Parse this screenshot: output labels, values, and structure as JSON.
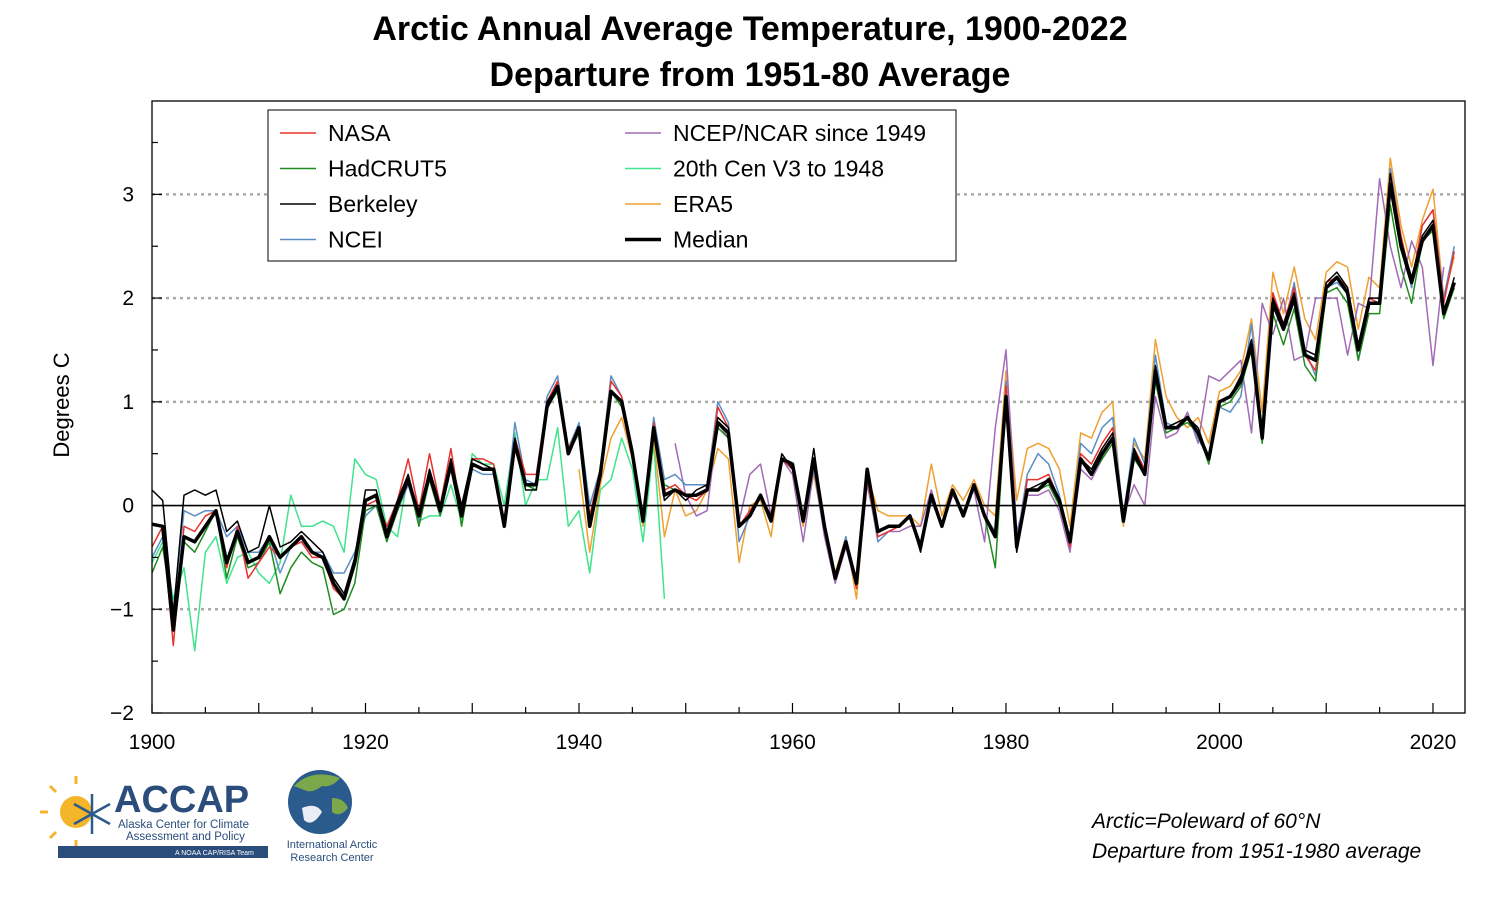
{
  "title_line1": "Arctic Annual Average Temperature, 1900-2022",
  "title_line2": "Departure from 1951-80 Average",
  "notes": {
    "line1": "Arctic=Poleward of 60°N",
    "line2": "Departure from 1951-1980 average"
  },
  "logos": {
    "accap": {
      "name": "ACCAP",
      "sub1": "Alaska Center for Climate",
      "sub2": "Assessment and Policy",
      "tag": "A NOAA CAP/RISA Team"
    },
    "iarc": {
      "line1": "International Arctic",
      "line2": "Research Center"
    }
  },
  "chart_data": {
    "type": "line",
    "ylabel": "Degrees C",
    "xlim": [
      1900,
      2023
    ],
    "ylim": [
      -2,
      3.9
    ],
    "x_ticks": [
      1900,
      1920,
      1940,
      1960,
      1980,
      2000,
      2020
    ],
    "y_ticks": [
      -2,
      -1,
      0,
      1,
      2,
      3
    ],
    "y_tick_labels": [
      "−2",
      "−1",
      "0",
      "1",
      "2",
      "3"
    ],
    "gridlines_y": [
      -1,
      1,
      2,
      3
    ],
    "zero_line": true,
    "legend_position": "top-left",
    "median_start_year": 1900,
    "median": [
      -0.18,
      -0.2,
      -1.2,
      -0.3,
      -0.35,
      -0.2,
      -0.05,
      -0.55,
      -0.25,
      -0.55,
      -0.5,
      -0.3,
      -0.5,
      -0.4,
      -0.3,
      -0.45,
      -0.5,
      -0.75,
      -0.9,
      -0.55,
      0.05,
      0.1,
      -0.3,
      0.0,
      0.25,
      -0.1,
      0.3,
      -0.05,
      0.4,
      -0.1,
      0.4,
      0.35,
      0.35,
      -0.2,
      0.6,
      0.2,
      0.2,
      0.95,
      1.15,
      0.5,
      0.75,
      -0.2,
      0.3,
      1.1,
      1.0,
      0.5,
      -0.15,
      0.75,
      0.1,
      0.15,
      0.1,
      0.1,
      0.15,
      0.8,
      0.7,
      -0.2,
      -0.1,
      0.1,
      -0.15,
      0.45,
      0.4,
      -0.15,
      0.45,
      -0.2,
      -0.7,
      -0.35,
      -0.75,
      0.35,
      -0.25,
      -0.2,
      -0.2,
      -0.1,
      -0.4,
      0.1,
      -0.2,
      0.15,
      -0.1,
      0.2,
      -0.1,
      -0.3,
      1.05,
      -0.4,
      0.15,
      0.15,
      0.25,
      0.05,
      -0.35,
      0.45,
      0.3,
      0.5,
      0.65,
      -0.15,
      0.5,
      0.3,
      1.3,
      0.75,
      0.75,
      0.85,
      0.7,
      0.45,
      1.0,
      1.05,
      1.2,
      1.55,
      0.65,
      1.95,
      1.7,
      2.0,
      1.45,
      1.4,
      2.1,
      2.2,
      2.05,
      1.5,
      1.95,
      1.95,
      3.1,
      2.5,
      2.15,
      2.55,
      2.7,
      1.85,
      2.15
    ],
    "series": [
      {
        "name": "NASA",
        "color": "#e8322e",
        "width": 1.5,
        "start": 1900,
        "values": [
          -0.4,
          -0.2,
          -1.35,
          -0.2,
          -0.25,
          -0.1,
          -0.05,
          -0.6,
          -0.2,
          -0.7,
          -0.55,
          -0.4,
          -0.5,
          -0.4,
          -0.35,
          -0.5,
          -0.5,
          -0.8,
          -0.9,
          -0.5,
          0.0,
          0.05,
          -0.2,
          0.05,
          0.45,
          -0.05,
          0.5,
          0.0,
          0.55,
          -0.1,
          0.45,
          0.45,
          0.4,
          -0.15,
          0.65,
          0.3,
          0.3,
          1.0,
          1.2,
          0.55,
          0.75,
          -0.1,
          0.35,
          1.2,
          1.05,
          0.55,
          -0.15,
          0.8,
          0.15,
          0.2,
          0.1,
          0.05,
          0.15,
          0.95,
          0.75,
          -0.2,
          -0.05,
          0.1,
          -0.15,
          0.45,
          0.35,
          -0.1,
          0.4,
          -0.25,
          -0.7,
          -0.35,
          -0.8,
          0.25,
          -0.3,
          -0.25,
          -0.2,
          -0.1,
          -0.4,
          0.1,
          -0.2,
          0.15,
          -0.1,
          0.2,
          -0.1,
          -0.3,
          1.15,
          -0.4,
          0.25,
          0.25,
          0.3,
          0.05,
          -0.4,
          0.5,
          0.4,
          0.6,
          0.75,
          -0.15,
          0.55,
          0.35,
          1.3,
          0.75,
          0.8,
          0.85,
          0.7,
          0.45,
          1.0,
          1.05,
          1.2,
          1.6,
          0.65,
          2.05,
          1.75,
          2.1,
          1.45,
          1.3,
          2.15,
          2.2,
          2.1,
          1.5,
          2.0,
          1.95,
          3.2,
          2.6,
          2.15,
          2.7,
          2.85,
          1.95,
          2.45
        ]
      },
      {
        "name": "HadCRUT5",
        "color": "#1f8c1f",
        "width": 1.5,
        "start": 1900,
        "values": [
          -0.65,
          -0.4,
          -1.05,
          -0.35,
          -0.45,
          -0.25,
          -0.05,
          -0.7,
          -0.3,
          -0.6,
          -0.55,
          -0.35,
          -0.85,
          -0.6,
          -0.45,
          -0.55,
          -0.6,
          -1.05,
          -1.0,
          -0.75,
          -0.05,
          0.0,
          -0.35,
          -0.05,
          0.25,
          -0.2,
          0.25,
          -0.1,
          0.45,
          -0.2,
          0.4,
          0.35,
          0.35,
          -0.2,
          0.55,
          0.2,
          0.15,
          0.95,
          1.1,
          0.5,
          0.7,
          -0.2,
          0.3,
          1.1,
          0.95,
          0.5,
          -0.15,
          0.7,
          0.2,
          0.15,
          0.1,
          0.1,
          0.15,
          0.75,
          0.65,
          -0.2,
          -0.1,
          0.1,
          -0.15,
          0.45,
          0.4,
          -0.15,
          0.45,
          -0.2,
          -0.7,
          -0.35,
          -0.75,
          0.3,
          -0.25,
          -0.2,
          -0.2,
          -0.1,
          -0.4,
          0.1,
          -0.2,
          0.15,
          -0.1,
          0.2,
          -0.1,
          -0.6,
          1.0,
          -0.4,
          0.15,
          0.15,
          0.2,
          0.0,
          -0.35,
          0.45,
          0.3,
          0.45,
          0.6,
          -0.15,
          0.45,
          0.3,
          1.2,
          0.7,
          0.75,
          0.8,
          0.7,
          0.4,
          0.95,
          1.0,
          1.15,
          1.5,
          0.6,
          1.85,
          1.55,
          1.9,
          1.35,
          1.2,
          2.05,
          2.1,
          1.95,
          1.4,
          1.85,
          1.85,
          2.9,
          2.3,
          1.95,
          2.55,
          2.65,
          1.8,
          2.1
        ]
      },
      {
        "name": "Berkeley",
        "color": "#000000",
        "width": 1.5,
        "start": 1900,
        "values": [
          0.15,
          0.05,
          -1.05,
          0.1,
          0.15,
          0.1,
          0.15,
          -0.25,
          -0.15,
          -0.45,
          -0.4,
          0.0,
          -0.4,
          -0.35,
          -0.25,
          -0.35,
          -0.45,
          -0.7,
          -0.85,
          -0.5,
          0.15,
          0.15,
          -0.25,
          0.05,
          0.3,
          -0.1,
          0.35,
          0.0,
          0.45,
          0.0,
          0.45,
          0.4,
          0.35,
          -0.15,
          0.65,
          0.15,
          0.15,
          1.0,
          1.15,
          0.5,
          0.75,
          -0.15,
          0.35,
          1.1,
          1.0,
          0.5,
          -0.1,
          0.75,
          0.05,
          0.15,
          0.05,
          0.15,
          0.2,
          0.85,
          0.75,
          -0.2,
          -0.1,
          0.1,
          -0.1,
          0.5,
          0.35,
          -0.1,
          0.55,
          -0.2,
          -0.7,
          -0.35,
          -0.75,
          0.35,
          -0.25,
          -0.2,
          -0.2,
          -0.1,
          -0.45,
          0.1,
          -0.2,
          0.15,
          -0.1,
          0.2,
          -0.1,
          -0.3,
          1.05,
          -0.45,
          0.15,
          0.2,
          0.25,
          0.05,
          -0.35,
          0.45,
          0.35,
          0.55,
          0.7,
          -0.15,
          0.55,
          0.3,
          1.35,
          0.75,
          0.8,
          0.85,
          0.75,
          0.45,
          1.0,
          1.05,
          1.25,
          1.6,
          0.65,
          2.0,
          1.75,
          2.05,
          1.5,
          1.45,
          2.15,
          2.25,
          2.1,
          1.55,
          2.0,
          2.0,
          3.2,
          2.55,
          2.2,
          2.6,
          2.75,
          1.85,
          2.2
        ]
      },
      {
        "name": "NCEI",
        "color": "#5b8ec5",
        "width": 1.5,
        "start": 1900,
        "values": [
          -0.5,
          -0.3,
          -1.0,
          -0.05,
          -0.1,
          -0.05,
          -0.05,
          -0.3,
          -0.2,
          -0.45,
          -0.45,
          -0.3,
          -0.65,
          -0.4,
          -0.35,
          -0.45,
          -0.45,
          -0.65,
          -0.65,
          -0.45,
          -0.1,
          0.0,
          -0.25,
          -0.05,
          0.2,
          -0.15,
          0.25,
          -0.1,
          0.4,
          -0.1,
          0.35,
          0.3,
          0.3,
          -0.2,
          0.8,
          0.25,
          0.2,
          1.05,
          1.25,
          0.55,
          0.8,
          0.0,
          0.35,
          1.25,
          1.05,
          0.55,
          -0.1,
          0.85,
          0.25,
          0.3,
          0.2,
          0.2,
          0.2,
          1.0,
          0.8,
          -0.35,
          -0.1,
          0.1,
          -0.15,
          0.45,
          0.35,
          -0.1,
          0.35,
          -0.25,
          -0.7,
          -0.3,
          -0.8,
          0.25,
          -0.35,
          -0.25,
          -0.2,
          -0.1,
          -0.4,
          0.05,
          -0.2,
          0.15,
          -0.1,
          0.2,
          -0.1,
          -0.25,
          1.2,
          -0.35,
          0.3,
          0.5,
          0.4,
          0.1,
          -0.35,
          0.6,
          0.5,
          0.75,
          0.85,
          -0.1,
          0.65,
          0.4,
          1.45,
          0.8,
          0.75,
          0.85,
          0.65,
          0.45,
          0.95,
          0.9,
          1.05,
          1.75,
          0.7,
          2.05,
          1.7,
          2.15,
          1.5,
          1.25,
          2.1,
          2.15,
          2.05,
          1.4,
          1.95,
          1.95,
          3.25,
          2.6,
          2.1,
          2.7,
          2.85,
          2.0,
          2.5
        ]
      },
      {
        "name": "NCEP/NCAR since 1949",
        "color": "#a26bb5",
        "width": 1.5,
        "start": 1949,
        "values": [
          0.6,
          0.1,
          -0.1,
          -0.05,
          0.8,
          0.65,
          -0.15,
          0.3,
          0.4,
          -0.1,
          0.45,
          0.3,
          -0.35,
          0.35,
          -0.3,
          -0.75,
          -0.4,
          -0.8,
          0.2,
          -0.3,
          -0.25,
          -0.25,
          -0.2,
          -0.2,
          0.15,
          -0.2,
          0.1,
          -0.05,
          0.15,
          -0.35,
          0.75,
          1.5,
          -0.25,
          0.1,
          0.1,
          0.15,
          -0.05,
          -0.45,
          0.35,
          0.25,
          0.45,
          0.65,
          -0.1,
          0.2,
          0.0,
          1.05,
          0.65,
          0.7,
          0.9,
          0.6,
          1.25,
          1.2,
          1.3,
          1.4,
          0.7,
          1.95,
          1.65,
          2.0,
          1.4,
          1.45,
          2.0,
          2.0,
          2.0,
          1.45,
          1.95,
          1.9,
          3.15,
          2.5,
          2.1,
          2.55,
          2.3,
          1.35,
          2.3
        ]
      },
      {
        "name": "20th Cen V3 to 1948",
        "color": "#41e38d",
        "width": 1.5,
        "start": 1900,
        "values": [
          -0.55,
          -0.35,
          -0.9,
          -0.6,
          -1.4,
          -0.45,
          -0.3,
          -0.75,
          -0.5,
          -0.45,
          -0.65,
          -0.75,
          -0.55,
          0.1,
          -0.2,
          -0.2,
          -0.15,
          -0.2,
          -0.45,
          0.45,
          0.3,
          0.25,
          -0.2,
          -0.3,
          0.3,
          -0.15,
          -0.1,
          -0.1,
          0.2,
          -0.15,
          0.5,
          0.4,
          0.4,
          0.0,
          0.7,
          0.0,
          0.25,
          0.25,
          0.75,
          -0.2,
          -0.05,
          -0.65,
          0.15,
          0.25,
          0.65,
          0.35,
          -0.35,
          0.6,
          -0.9
        ]
      },
      {
        "name": "ERA5",
        "color": "#f0a030",
        "width": 1.5,
        "start": 1940,
        "values": [
          0.35,
          -0.45,
          0.2,
          0.65,
          0.85,
          0.45,
          -0.2,
          0.65,
          -0.3,
          0.15,
          -0.1,
          -0.05,
          0.15,
          0.55,
          0.45,
          -0.55,
          0.0,
          0.05,
          -0.3,
          0.45,
          0.35,
          -0.2,
          0.3,
          -0.25,
          -0.65,
          -0.3,
          -0.9,
          0.3,
          -0.05,
          -0.1,
          -0.1,
          -0.1,
          -0.2,
          0.4,
          -0.1,
          0.2,
          0.05,
          0.25,
          0.0,
          -0.1,
          1.3,
          0.05,
          0.55,
          0.6,
          0.55,
          0.35,
          -0.2,
          0.7,
          0.65,
          0.9,
          1.0,
          -0.2,
          0.6,
          0.45,
          1.6,
          1.05,
          0.85,
          0.75,
          0.85,
          0.6,
          1.1,
          1.15,
          1.3,
          1.8,
          0.9,
          2.25,
          1.85,
          2.3,
          1.8,
          1.6,
          2.25,
          2.35,
          2.3,
          1.7,
          2.2,
          2.1,
          3.35,
          2.7,
          2.3,
          2.75,
          3.05,
          2.0,
          2.4
        ]
      }
    ],
    "median_series": {
      "name": "Median",
      "color": "#000000",
      "width": 3.5
    }
  }
}
